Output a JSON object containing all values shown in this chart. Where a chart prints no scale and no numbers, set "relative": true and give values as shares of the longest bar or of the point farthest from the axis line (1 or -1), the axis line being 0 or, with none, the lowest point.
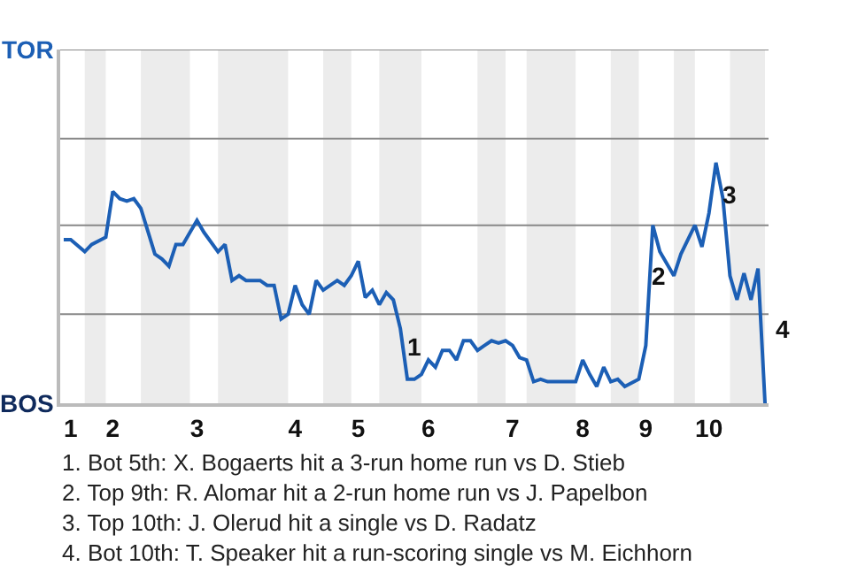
{
  "chart_data": {
    "type": "line",
    "relative": true,
    "categories": [
      null,
      "1",
      null,
      null,
      null,
      null,
      null,
      "2",
      null,
      null,
      null,
      null,
      null,
      null,
      null,
      null,
      null,
      null,
      null,
      "3",
      null,
      null,
      null,
      null,
      null,
      null,
      null,
      null,
      null,
      null,
      null,
      null,
      null,
      "4",
      null,
      null,
      null,
      null,
      null,
      null,
      null,
      null,
      "5",
      null,
      null,
      null,
      null,
      null,
      null,
      null,
      null,
      null,
      "6",
      null,
      null,
      null,
      null,
      null,
      null,
      null,
      null,
      null,
      null,
      null,
      "7",
      null,
      null,
      null,
      null,
      null,
      null,
      null,
      null,
      null,
      "8",
      null,
      null,
      null,
      null,
      null,
      null,
      null,
      null,
      "9",
      null,
      null,
      null,
      null,
      null,
      null,
      null,
      null,
      "10",
      null,
      null,
      null,
      null,
      null,
      null,
      null,
      null
    ],
    "series": [
      {
        "color": "#1c5fb5",
        "values": [
          0.68,
          0.68,
          null,
          0.63,
          0.66,
          null,
          0.69,
          0.88,
          0.85,
          0.84,
          0.85,
          0.81,
          null,
          0.62,
          0.6,
          0.57,
          0.66,
          0.66,
          0.71,
          0.76,
          0.71,
          null,
          0.63,
          0.66,
          0.51,
          0.53,
          0.51,
          null,
          0.51,
          0.49,
          0.49,
          0.35,
          0.37,
          0.49,
          0.41,
          0.37,
          0.51,
          0.47,
          null,
          0.51,
          0.49,
          0.53,
          0.59,
          0.44,
          0.47,
          0.41,
          0.46,
          0.43,
          0.31,
          0.1,
          0.1,
          0.12,
          0.18,
          0.15,
          0.22,
          0.22,
          0.18,
          0.26,
          0.26,
          0.22,
          0.24,
          0.26,
          0.25,
          0.26,
          0.24,
          0.19,
          0.18,
          0.09,
          0.1,
          0.09,
          null,
          null,
          null,
          0.09,
          0.18,
          0.12,
          0.07,
          0.15,
          0.09,
          0.1,
          0.07,
          null,
          0.1,
          0.24,
          0.74,
          0.63,
          null,
          0.53,
          0.62,
          null,
          0.74,
          0.65,
          0.79,
          1,
          0.85,
          0.53,
          0.43,
          0.54,
          0.43,
          0.56,
          0
        ]
      }
    ],
    "marker": "none",
    "line_style": "solid",
    "ref_lines": [
      {
        "axis": "y",
        "value": 0.37,
        "color": "#888888"
      },
      {
        "axis": "y",
        "value": 0.74,
        "color": "#888888"
      },
      {
        "axis": "y",
        "value": 1.1,
        "color": "#888888"
      },
      {
        "axis": "y",
        "value": 1.47,
        "color": "#888888"
      }
    ],
    "annotations": [
      "TOR",
      "BOS",
      "1",
      "2",
      "3",
      "4",
      "1. Bot 5th: X. Bogaerts hit a 3-run home run vs D. Stieb",
      "2. Top 9th: R. Alomar hit a 2-run home run vs J. Papelbon",
      "3. Top 10th: J. Olerud hit a single vs D. Radatz",
      "4. Bot 10th: T. Speaker hit a run-scoring single vs M. Eichhorn"
    ]
  }
}
